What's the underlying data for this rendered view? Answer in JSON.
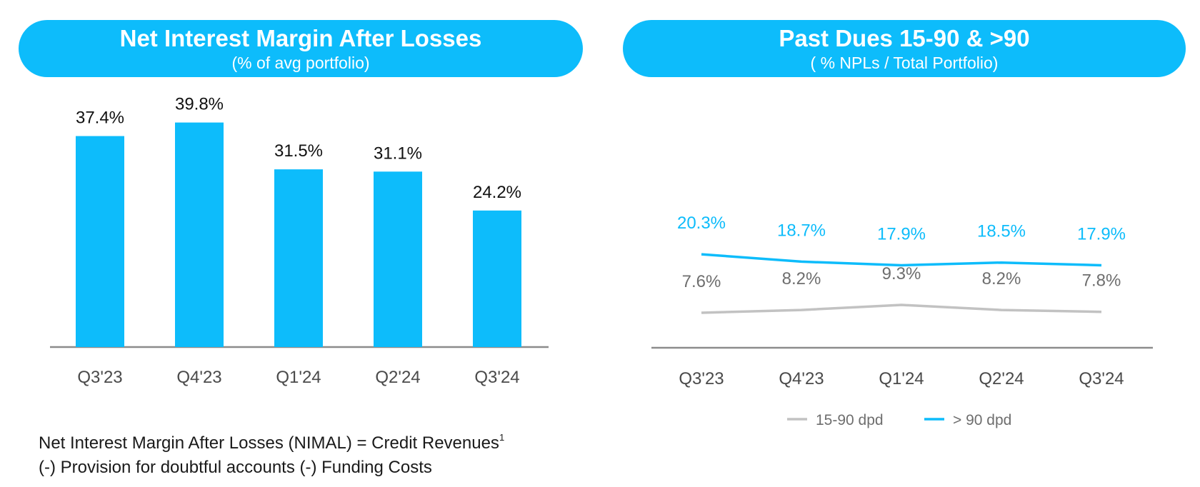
{
  "left_header": {
    "title": "Net Interest Margin After Losses",
    "subtitle": "(% of avg portfolio)"
  },
  "right_header": {
    "title": "Past Dues 15-90 & >90",
    "subtitle": "( % NPLs / Total Portfolio)"
  },
  "footnote": {
    "line1": "Net Interest Margin After Losses (NIMAL) =  Credit Revenues",
    "superscript": "1",
    "line2": "(-) Provision for doubtful accounts (-) Funding Costs"
  },
  "colors": {
    "accent": "#0dbcfb",
    "gray_line": "#c2c2c2",
    "gray_text": "#6e6e6e",
    "axis": "#8c8c8c"
  },
  "chart_data": [
    {
      "type": "bar",
      "categories": [
        "Q3'23",
        "Q4'23",
        "Q1'24",
        "Q2'24",
        "Q3'24"
      ],
      "values": [
        37.4,
        39.8,
        31.5,
        31.1,
        24.2
      ],
      "labels": [
        "37.4%",
        "39.8%",
        "31.5%",
        "31.1%",
        "24.2%"
      ],
      "title": "Net Interest Margin After Losses",
      "subtitle": "(% of avg portfolio)",
      "ylim": [
        0,
        40
      ],
      "grid": false
    },
    {
      "type": "line",
      "categories": [
        "Q3'23",
        "Q4'23",
        "Q1'24",
        "Q2'24",
        "Q3'24"
      ],
      "title": "Past Dues 15-90 & >90",
      "subtitle": "( % NPLs / Total Portfolio)",
      "series": [
        {
          "name": "15-90 dpd",
          "values": [
            7.6,
            8.2,
            9.3,
            8.2,
            7.8
          ],
          "labels": [
            "7.6%",
            "8.2%",
            "9.3%",
            "8.2%",
            "7.8%"
          ],
          "color": "#c2c2c2"
        },
        {
          "name": "> 90 dpd",
          "values": [
            20.3,
            18.7,
            17.9,
            18.5,
            17.9
          ],
          "labels": [
            "20.3%",
            "18.7%",
            "17.9%",
            "18.5%",
            "17.9%"
          ],
          "color": "#0dbcfb"
        }
      ],
      "ylim": [
        0,
        27
      ],
      "legend": "bottom",
      "grid": false
    }
  ]
}
